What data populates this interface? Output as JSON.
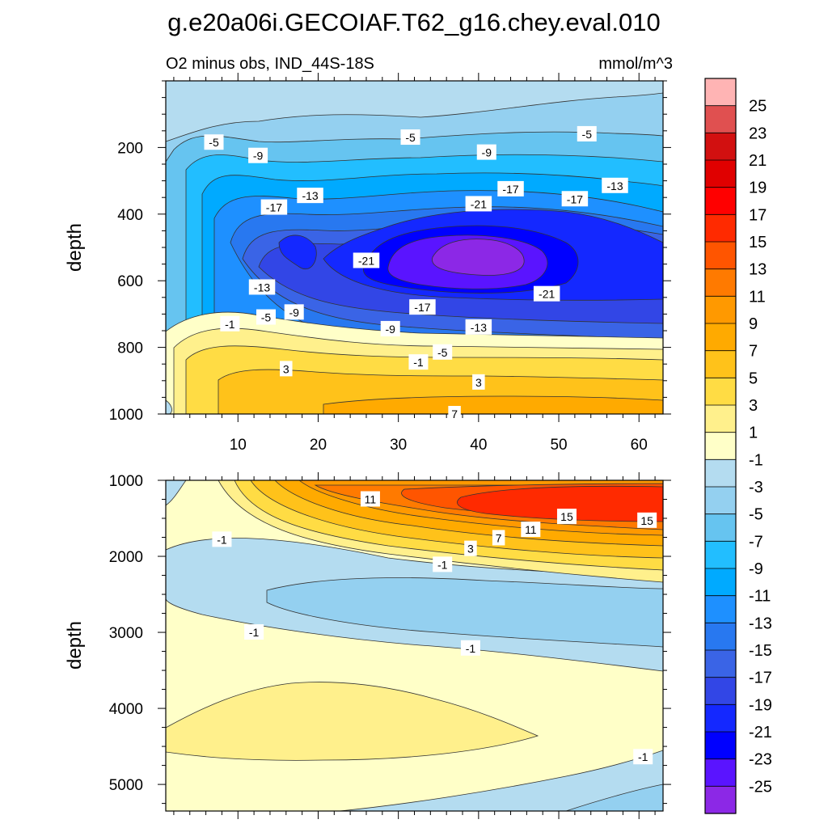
{
  "title": "g.e20a06i.GECOIAF.T62_g16.chey.eval.010",
  "subtitle_left": "O2 minus obs, IND_44S-18S",
  "subtitle_right": "mmol/m^3",
  "chart_data": [
    {
      "type": "contour",
      "panel": "upper",
      "xlabel": "",
      "ylabel": "depth",
      "xlim": [
        1,
        63
      ],
      "ylim": [
        1000,
        0
      ],
      "x_ticks": [
        10,
        20,
        30,
        40,
        50,
        60
      ],
      "y_ticks": [
        200,
        400,
        600,
        800,
        1000
      ],
      "contour_labels": [
        {
          "text": "-5",
          "x": 7,
          "y": 185
        },
        {
          "text": "-9",
          "x": 12.5,
          "y": 225
        },
        {
          "text": "-5",
          "x": 31.5,
          "y": 170
        },
        {
          "text": "-9",
          "x": 41,
          "y": 215
        },
        {
          "text": "-5",
          "x": 53.5,
          "y": 160
        },
        {
          "text": "-17",
          "x": 14.5,
          "y": 380
        },
        {
          "text": "-13",
          "x": 19,
          "y": 345
        },
        {
          "text": "-21",
          "x": 40,
          "y": 370
        },
        {
          "text": "-17",
          "x": 44,
          "y": 325
        },
        {
          "text": "-17",
          "x": 52,
          "y": 355
        },
        {
          "text": "-13",
          "x": 57,
          "y": 315
        },
        {
          "text": "-21",
          "x": 26,
          "y": 540
        },
        {
          "text": "-13",
          "x": 13,
          "y": 620
        },
        {
          "text": "-9",
          "x": 17,
          "y": 695
        },
        {
          "text": "-5",
          "x": 13.5,
          "y": 710
        },
        {
          "text": "-1",
          "x": 9,
          "y": 730
        },
        {
          "text": "-17",
          "x": 33,
          "y": 680
        },
        {
          "text": "-21",
          "x": 48.5,
          "y": 640
        },
        {
          "text": "-9",
          "x": 29,
          "y": 745
        },
        {
          "text": "-13",
          "x": 40,
          "y": 740
        },
        {
          "text": "-5",
          "x": 35.5,
          "y": 815
        },
        {
          "text": "-1",
          "x": 32.5,
          "y": 845
        },
        {
          "text": "3",
          "x": 16,
          "y": 865
        },
        {
          "text": "3",
          "x": 40,
          "y": 905
        },
        {
          "text": "7",
          "x": 37,
          "y": 1000
        }
      ]
    },
    {
      "type": "contour",
      "panel": "lower",
      "xlabel": "",
      "ylabel": "depth",
      "xlim": [
        1,
        63
      ],
      "ylim": [
        5350,
        1000
      ],
      "y_ticks": [
        1000,
        2000,
        3000,
        4000,
        5000
      ],
      "contour_labels": [
        {
          "text": "11",
          "x": 26.5,
          "y": 1250
        },
        {
          "text": "15",
          "x": 51,
          "y": 1480
        },
        {
          "text": "15",
          "x": 61,
          "y": 1530
        },
        {
          "text": "11",
          "x": 46.5,
          "y": 1650
        },
        {
          "text": "7",
          "x": 42.5,
          "y": 1760
        },
        {
          "text": "3",
          "x": 39,
          "y": 1900
        },
        {
          "text": "-1",
          "x": 8,
          "y": 1780
        },
        {
          "text": "-1",
          "x": 35.5,
          "y": 2110
        },
        {
          "text": "-1",
          "x": 12,
          "y": 3000
        },
        {
          "text": "-1",
          "x": 39,
          "y": 3210
        },
        {
          "text": "-1",
          "x": 60.5,
          "y": 4640
        }
      ]
    }
  ],
  "colorbar": {
    "labels": [
      "25",
      "23",
      "21",
      "19",
      "17",
      "15",
      "13",
      "11",
      "9",
      "7",
      "5",
      "3",
      "1",
      "-1",
      "-3",
      "-5",
      "-7",
      "-9",
      "-11",
      "-13",
      "-15",
      "-17",
      "-19",
      "-21",
      "-23",
      "-25"
    ],
    "colors": [
      "#ffb4b4",
      "#e05050",
      "#d21010",
      "#e00000",
      "#ff0000",
      "#ff2a00",
      "#ff5500",
      "#ff7a00",
      "#ff9900",
      "#ffaa00",
      "#ffc21a",
      "#ffdc44",
      "#fff08c",
      "#ffffc8",
      "#b4dcf0",
      "#94d0f0",
      "#66c4f0",
      "#22beff",
      "#00aaff",
      "#1e90ff",
      "#2878f0",
      "#3a64e6",
      "#3246e6",
      "#1428ff",
      "#0000ff",
      "#5a14ff",
      "#8c28e6"
    ]
  },
  "colors": {
    "water_light": "#b4dcf0",
    "water_mid": "#94d0f0",
    "positive_light": "#ffffc8",
    "positive_mid": "#fff08c"
  }
}
